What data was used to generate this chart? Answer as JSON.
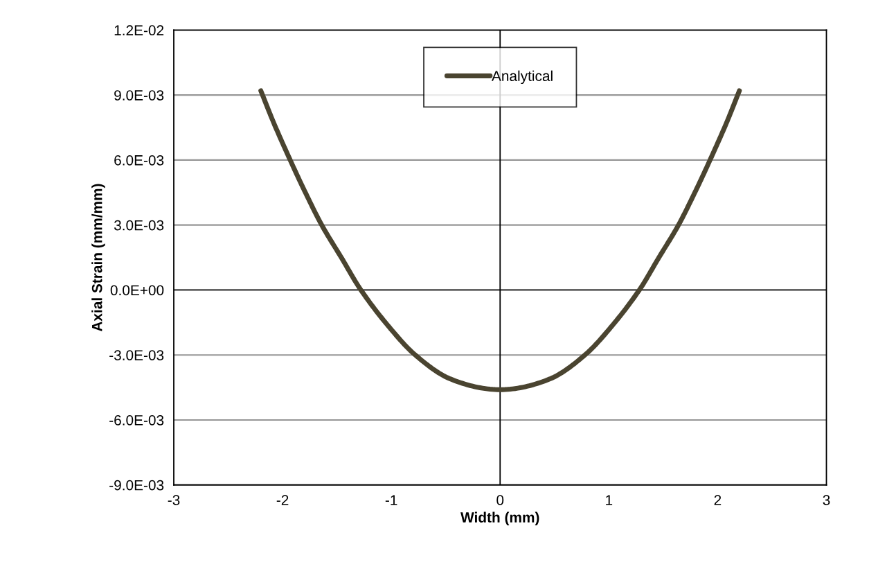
{
  "chart_data": {
    "type": "line",
    "xlabel": "Width (mm)",
    "ylabel": "Axial Strain (mm/mm)",
    "series": [
      {
        "name": "Analytical",
        "color": "#4a4430",
        "x": [
          -2.2,
          -2.08,
          -1.93,
          -1.8,
          -1.64,
          -1.46,
          -1.28,
          -1.03,
          -0.78,
          -0.46,
          0,
          0.46,
          0.78,
          1.03,
          1.28,
          1.46,
          1.64,
          1.8,
          1.93,
          2.08,
          2.2
        ],
        "values": [
          0.0092,
          0.0077,
          0.006,
          0.0046,
          0.003,
          0.0015,
          0,
          -0.00165,
          -0.003,
          -0.0041,
          -0.0046,
          -0.0041,
          -0.003,
          -0.00165,
          0,
          0.0015,
          0.003,
          0.0046,
          0.006,
          0.0077,
          0.0092
        ]
      }
    ],
    "xlim": [
      -3,
      3
    ],
    "xticks": [
      -3,
      -2,
      -1,
      0,
      1,
      2,
      3
    ],
    "ylim": [
      -0.009,
      0.012
    ],
    "yticks": [
      {
        "value": -0.009,
        "label": "-9.0E-03"
      },
      {
        "value": -0.006,
        "label": "-6.0E-03"
      },
      {
        "value": -0.003,
        "label": "-3.0E-03"
      },
      {
        "value": 0,
        "label": "0.0E+00"
      },
      {
        "value": 0.003,
        "label": "3.0E-03"
      },
      {
        "value": 0.006,
        "label": "6.0E-03"
      },
      {
        "value": 0.009,
        "label": "9.0E-03"
      },
      {
        "value": 0.012,
        "label": "1.2E-02"
      }
    ],
    "ref_lines": [
      {
        "axis": "x",
        "value": 0,
        "color": "#000000"
      }
    ],
    "grid": "y",
    "legend": "top",
    "marker": "none",
    "line_style": "solid"
  }
}
